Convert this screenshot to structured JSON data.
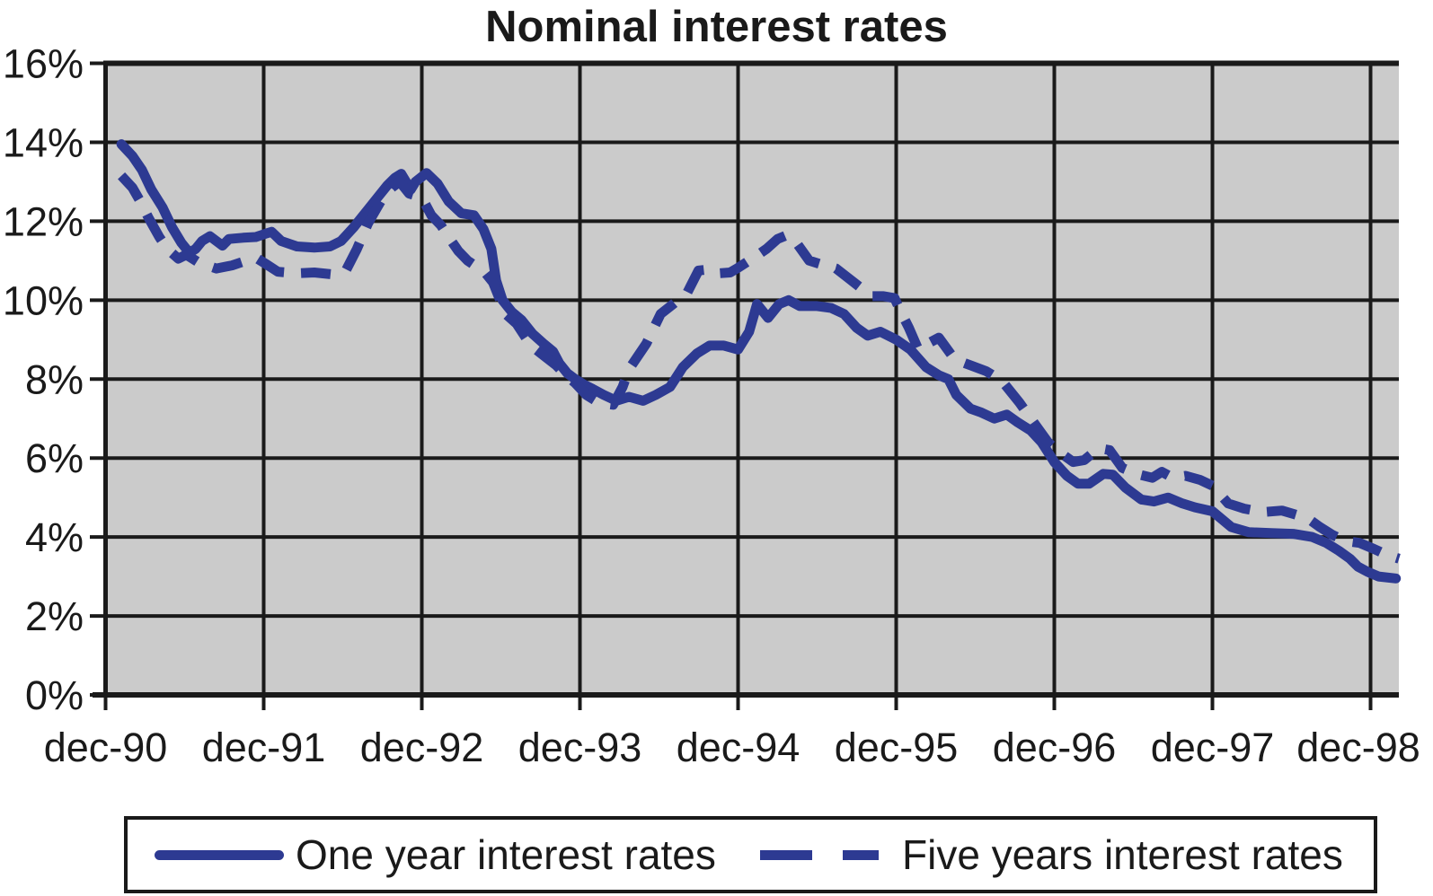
{
  "colors": {
    "line_blue": "#2d3a92",
    "plot_background": "#cbcbcb",
    "grid_black": "#1a1a1a",
    "text_black": "#1a1a1a",
    "page_background": "#ffffff"
  },
  "chart_data": {
    "type": "line",
    "title": "Nominal interest rates",
    "xlabel": "",
    "ylabel": "",
    "x_unit": "years after dec-90",
    "xlim": [
      0,
      8.2
    ],
    "ylim": [
      0,
      16
    ],
    "grid": true,
    "plot_bg": "gray",
    "legend_position": "bottom-box",
    "y_tick_values": [
      0,
      2,
      4,
      6,
      8,
      10,
      12,
      14,
      16
    ],
    "y_tick_labels": [
      "0%",
      "2%",
      "4%",
      "6%",
      "8%",
      "10%",
      "12%",
      "14%",
      "16%"
    ],
    "x_tick_values": [
      0,
      1,
      2,
      3,
      4,
      5,
      6,
      7,
      8
    ],
    "x_tick_labels": [
      "dec-90",
      "dec-91",
      "dec-92",
      "dec-93",
      "dec-94",
      "dec-95",
      "dec-96",
      "dec-97",
      "dec-98"
    ],
    "series": [
      {
        "name": "One year interest rates",
        "style": "solid",
        "points": [
          [
            0.1,
            13.95
          ],
          [
            0.17,
            13.65
          ],
          [
            0.23,
            13.3
          ],
          [
            0.29,
            12.8
          ],
          [
            0.36,
            12.35
          ],
          [
            0.42,
            11.85
          ],
          [
            0.48,
            11.45
          ],
          [
            0.53,
            11.2
          ],
          [
            0.57,
            11.3
          ],
          [
            0.61,
            11.5
          ],
          [
            0.66,
            11.62
          ],
          [
            0.74,
            11.38
          ],
          [
            0.78,
            11.55
          ],
          [
            0.87,
            11.58
          ],
          [
            0.95,
            11.6
          ],
          [
            1.01,
            11.68
          ],
          [
            1.05,
            11.73
          ],
          [
            1.11,
            11.5
          ],
          [
            1.21,
            11.36
          ],
          [
            1.32,
            11.33
          ],
          [
            1.42,
            11.36
          ],
          [
            1.49,
            11.5
          ],
          [
            1.57,
            11.85
          ],
          [
            1.65,
            12.25
          ],
          [
            1.72,
            12.6
          ],
          [
            1.78,
            12.9
          ],
          [
            1.83,
            13.1
          ],
          [
            1.87,
            13.2
          ],
          [
            1.93,
            12.8
          ],
          [
            1.96,
            13.0
          ],
          [
            2.03,
            13.22
          ],
          [
            2.1,
            12.95
          ],
          [
            2.17,
            12.5
          ],
          [
            2.25,
            12.2
          ],
          [
            2.33,
            12.15
          ],
          [
            2.39,
            11.8
          ],
          [
            2.44,
            11.3
          ],
          [
            2.47,
            10.5
          ],
          [
            2.51,
            10.0
          ],
          [
            2.57,
            9.7
          ],
          [
            2.63,
            9.5
          ],
          [
            2.7,
            9.15
          ],
          [
            2.77,
            8.9
          ],
          [
            2.83,
            8.7
          ],
          [
            2.87,
            8.4
          ],
          [
            2.92,
            8.15
          ],
          [
            2.97,
            8.0
          ],
          [
            3.03,
            7.85
          ],
          [
            3.08,
            7.75
          ],
          [
            3.15,
            7.6
          ],
          [
            3.23,
            7.45
          ],
          [
            3.31,
            7.55
          ],
          [
            3.4,
            7.45
          ],
          [
            3.48,
            7.6
          ],
          [
            3.57,
            7.8
          ],
          [
            3.65,
            8.3
          ],
          [
            3.74,
            8.65
          ],
          [
            3.82,
            8.85
          ],
          [
            3.91,
            8.85
          ],
          [
            4.0,
            8.75
          ],
          [
            4.07,
            9.2
          ],
          [
            4.12,
            9.9
          ],
          [
            4.19,
            9.55
          ],
          [
            4.26,
            9.9
          ],
          [
            4.32,
            10.0
          ],
          [
            4.39,
            9.85
          ],
          [
            4.5,
            9.85
          ],
          [
            4.59,
            9.8
          ],
          [
            4.67,
            9.65
          ],
          [
            4.75,
            9.3
          ],
          [
            4.82,
            9.1
          ],
          [
            4.9,
            9.2
          ],
          [
            5.0,
            9.0
          ],
          [
            5.09,
            8.75
          ],
          [
            5.19,
            8.3
          ],
          [
            5.27,
            8.1
          ],
          [
            5.33,
            8.0
          ],
          [
            5.38,
            7.6
          ],
          [
            5.47,
            7.25
          ],
          [
            5.54,
            7.15
          ],
          [
            5.62,
            7.0
          ],
          [
            5.7,
            7.1
          ],
          [
            5.77,
            6.9
          ],
          [
            5.85,
            6.7
          ],
          [
            5.92,
            6.4
          ],
          [
            6.0,
            5.9
          ],
          [
            6.08,
            5.55
          ],
          [
            6.15,
            5.35
          ],
          [
            6.22,
            5.35
          ],
          [
            6.31,
            5.6
          ],
          [
            6.37,
            5.58
          ],
          [
            6.45,
            5.25
          ],
          [
            6.55,
            4.95
          ],
          [
            6.63,
            4.9
          ],
          [
            6.72,
            5.0
          ],
          [
            6.81,
            4.85
          ],
          [
            6.89,
            4.75
          ],
          [
            7.0,
            4.65
          ],
          [
            7.12,
            4.25
          ],
          [
            7.23,
            4.12
          ],
          [
            7.37,
            4.1
          ],
          [
            7.51,
            4.08
          ],
          [
            7.63,
            4.0
          ],
          [
            7.72,
            3.85
          ],
          [
            7.8,
            3.65
          ],
          [
            7.87,
            3.45
          ],
          [
            7.92,
            3.25
          ],
          [
            7.98,
            3.12
          ],
          [
            8.05,
            3.0
          ],
          [
            8.16,
            2.95
          ]
        ]
      },
      {
        "name": "Five years interest rates",
        "style": "dashed",
        "points": [
          [
            0.1,
            13.15
          ],
          [
            0.17,
            12.85
          ],
          [
            0.22,
            12.5
          ],
          [
            0.27,
            12.1
          ],
          [
            0.34,
            11.6
          ],
          [
            0.39,
            11.3
          ],
          [
            0.46,
            11.05
          ],
          [
            0.51,
            11.15
          ],
          [
            0.59,
            10.95
          ],
          [
            0.7,
            10.8
          ],
          [
            0.8,
            10.88
          ],
          [
            0.89,
            11.0
          ],
          [
            0.96,
            11.05
          ],
          [
            1.02,
            10.9
          ],
          [
            1.09,
            10.72
          ],
          [
            1.21,
            10.68
          ],
          [
            1.32,
            10.7
          ],
          [
            1.44,
            10.65
          ],
          [
            1.52,
            10.75
          ],
          [
            1.59,
            11.3
          ],
          [
            1.66,
            11.95
          ],
          [
            1.74,
            12.5
          ],
          [
            1.81,
            12.85
          ],
          [
            1.86,
            13.0
          ],
          [
            1.92,
            12.7
          ],
          [
            2.0,
            12.6
          ],
          [
            2.06,
            12.15
          ],
          [
            2.12,
            11.9
          ],
          [
            2.17,
            11.6
          ],
          [
            2.23,
            11.25
          ],
          [
            2.29,
            11.0
          ],
          [
            2.4,
            10.7
          ],
          [
            2.45,
            10.45
          ],
          [
            2.53,
            9.65
          ],
          [
            2.6,
            9.4
          ],
          [
            2.69,
            8.85
          ],
          [
            2.77,
            8.6
          ],
          [
            2.85,
            8.35
          ],
          [
            2.91,
            8.1
          ],
          [
            2.97,
            7.9
          ],
          [
            3.04,
            7.6
          ],
          [
            3.12,
            7.4
          ],
          [
            3.21,
            7.35
          ],
          [
            3.27,
            7.8
          ],
          [
            3.31,
            8.25
          ],
          [
            3.42,
            8.9
          ],
          [
            3.51,
            9.65
          ],
          [
            3.59,
            9.9
          ],
          [
            3.68,
            10.2
          ],
          [
            3.75,
            10.75
          ],
          [
            3.82,
            10.78
          ],
          [
            3.88,
            10.68
          ],
          [
            3.95,
            10.7
          ],
          [
            4.0,
            10.82
          ],
          [
            4.09,
            11.05
          ],
          [
            4.18,
            11.3
          ],
          [
            4.25,
            11.55
          ],
          [
            4.31,
            11.65
          ],
          [
            4.37,
            11.45
          ],
          [
            4.45,
            11.0
          ],
          [
            4.53,
            10.9
          ],
          [
            4.62,
            10.8
          ],
          [
            4.7,
            10.55
          ],
          [
            4.78,
            10.3
          ],
          [
            4.84,
            10.1
          ],
          [
            4.92,
            10.1
          ],
          [
            4.99,
            10.05
          ],
          [
            5.03,
            9.7
          ],
          [
            5.08,
            9.3
          ],
          [
            5.14,
            8.75
          ],
          [
            5.2,
            8.9
          ],
          [
            5.27,
            9.05
          ],
          [
            5.37,
            8.5
          ],
          [
            5.47,
            8.35
          ],
          [
            5.57,
            8.2
          ],
          [
            5.67,
            7.95
          ],
          [
            5.78,
            7.4
          ],
          [
            5.87,
            6.9
          ],
          [
            5.96,
            6.4
          ],
          [
            6.05,
            6.1
          ],
          [
            6.12,
            5.9
          ],
          [
            6.19,
            5.95
          ],
          [
            6.28,
            6.25
          ],
          [
            6.35,
            6.2
          ],
          [
            6.43,
            5.75
          ],
          [
            6.52,
            5.6
          ],
          [
            6.62,
            5.5
          ],
          [
            6.68,
            5.65
          ],
          [
            6.75,
            5.5
          ],
          [
            6.83,
            5.55
          ],
          [
            6.92,
            5.45
          ],
          [
            7.0,
            5.3
          ],
          [
            7.1,
            4.85
          ],
          [
            7.2,
            4.72
          ],
          [
            7.32,
            4.63
          ],
          [
            7.44,
            4.67
          ],
          [
            7.54,
            4.55
          ],
          [
            7.61,
            4.45
          ],
          [
            7.68,
            4.25
          ],
          [
            7.76,
            4.05
          ],
          [
            7.84,
            3.9
          ],
          [
            7.93,
            3.85
          ],
          [
            8.02,
            3.7
          ],
          [
            8.1,
            3.55
          ],
          [
            8.18,
            3.45
          ]
        ]
      }
    ]
  }
}
